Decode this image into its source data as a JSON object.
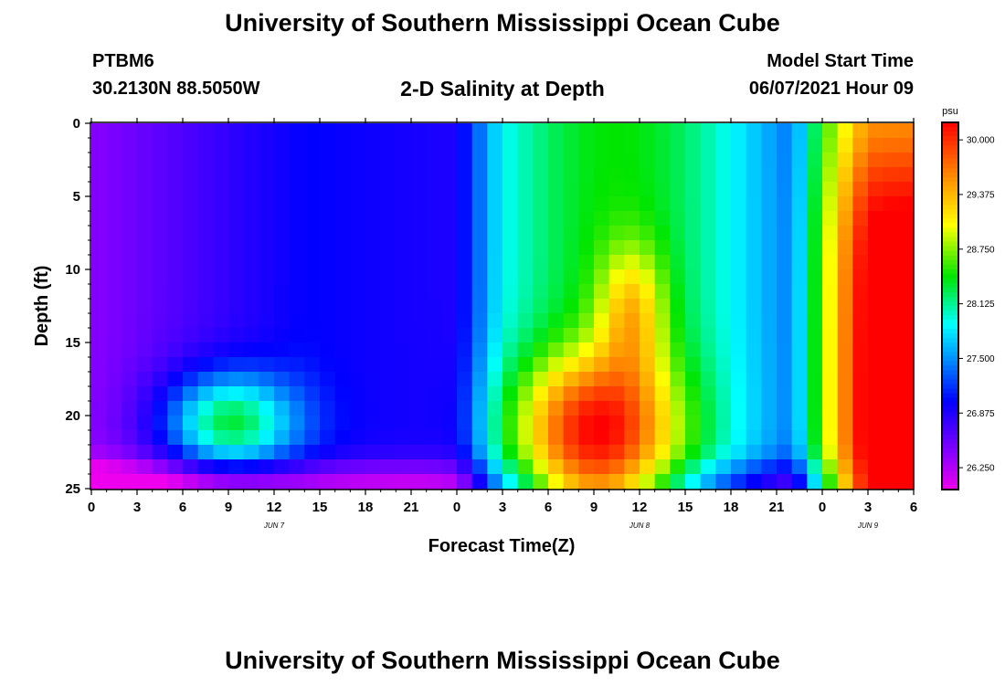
{
  "header": {
    "title": "University of Southern Mississippi Ocean Cube",
    "station": "PTBM6",
    "coords": "30.2130N  88.5050W",
    "subtitle": "2-D Salinity at Depth",
    "start_label": "Model Start Time",
    "start_value": "06/07/2021 Hour 09"
  },
  "footer": {
    "title": "University of Southern Mississippi Ocean Cube"
  },
  "chart_data": {
    "type": "heatmap",
    "title": "2-D Salinity at Depth",
    "xlabel": "Forecast Time(Z)",
    "ylabel": "Depth (ft)",
    "x_ticks": [
      "0",
      "3",
      "6",
      "9",
      "12",
      "15",
      "18",
      "21",
      "0",
      "3",
      "6",
      "9",
      "12",
      "15",
      "18",
      "21",
      "0",
      "3",
      "6"
    ],
    "x_range_hours": [
      0,
      54
    ],
    "day_labels": [
      {
        "label": "JUN 7",
        "hour": 12
      },
      {
        "label": "JUN 8",
        "hour": 36
      },
      {
        "label": "JUN 9",
        "hour": 51
      }
    ],
    "y_ticks": [
      "0",
      "5",
      "10",
      "15",
      "20",
      "25"
    ],
    "y_range_ft": [
      0,
      25
    ],
    "colorbar": {
      "unit": "psu",
      "tick_labels": [
        "30.000",
        "29.375",
        "28.750",
        "28.125",
        "27.500",
        "26.875",
        "26.250"
      ],
      "range": [
        26.0,
        30.2
      ]
    },
    "grid": {
      "cols": 54,
      "rows": 25,
      "description": "salinity (psu) by forecast hour (columns) and depth in ft (rows)"
    },
    "notable_features": [
      {
        "name": "low salinity surface lens",
        "hours": [
          0,
          5
        ],
        "depth_ft": [
          0,
          15
        ],
        "psu": 26.3
      },
      {
        "name": "mid-depth pocket",
        "hours": [
          5,
          13
        ],
        "depth_ft": [
          18,
          23
        ],
        "psu": 27.9
      },
      {
        "name": "high salinity intrusion",
        "hours": [
          26,
          39
        ],
        "depth_ft": [
          9,
          25
        ],
        "psu": 29.6
      },
      {
        "name": "high salinity intrusion",
        "hours": [
          48,
          54
        ],
        "depth_ft": [
          2,
          25
        ],
        "psu": 29.9
      }
    ]
  }
}
